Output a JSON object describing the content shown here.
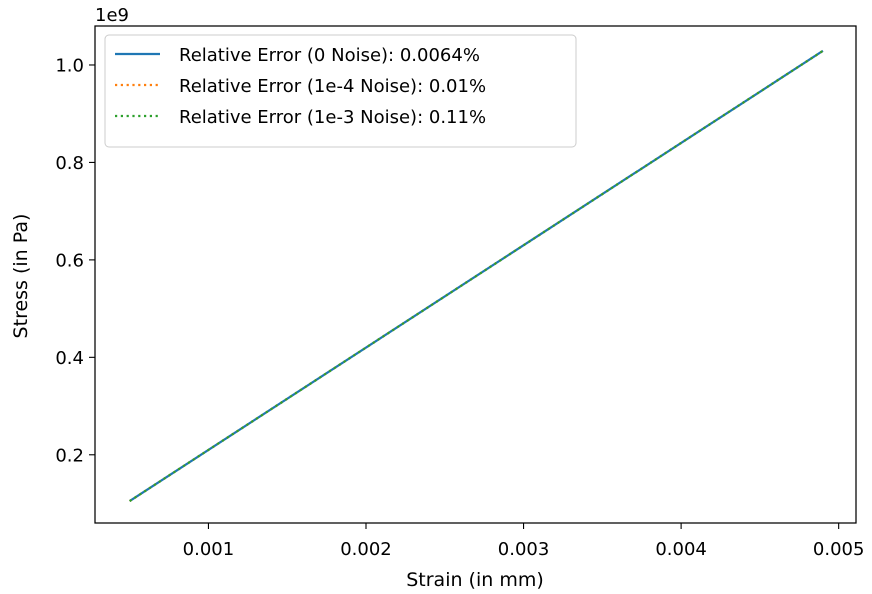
{
  "chart_data": {
    "type": "line",
    "xlabel": "Strain (in mm)",
    "ylabel": "Stress (in Pa)",
    "y_scale_label": "1e9",
    "xlim": [
      0.00028,
      0.00511
    ],
    "ylim": [
      0.06,
      1.08
    ],
    "x_ticks": [
      0.001,
      0.002,
      0.003,
      0.004,
      0.005
    ],
    "x_tick_labels": [
      "0.001",
      "0.002",
      "0.003",
      "0.004",
      "0.005"
    ],
    "y_ticks": [
      0.2,
      0.4,
      0.6,
      0.8,
      1.0
    ],
    "y_tick_labels": [
      "0.2",
      "0.4",
      "0.6",
      "0.8",
      "1.0"
    ],
    "grid": false,
    "legend_position": "top-left",
    "series": [
      {
        "name": "Relative Error (0 Noise): 0.0064%",
        "color": "#1f77b4",
        "style": "solid",
        "x": [
          0.0005,
          0.0049
        ],
        "y": [
          0.105,
          1.029
        ]
      },
      {
        "name": "Relative Error (1e-4 Noise): 0.01%",
        "color": "#ff7f0e",
        "style": "dotted",
        "x": [
          0.0005,
          0.0049
        ],
        "y": [
          0.105,
          1.029
        ]
      },
      {
        "name": "Relative Error (1e-3 Noise): 0.11%",
        "color": "#2ca02c",
        "style": "dotted",
        "x": [
          0.0005,
          0.0049
        ],
        "y": [
          0.105,
          1.029
        ]
      }
    ]
  }
}
